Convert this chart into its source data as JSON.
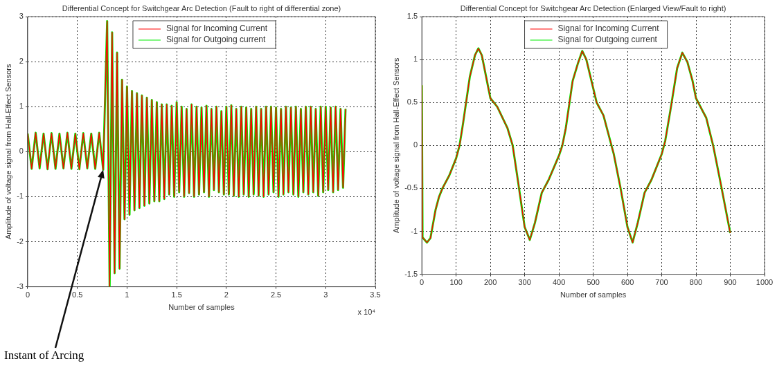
{
  "chart_data": [
    {
      "type": "line",
      "title": "Differential Concept for Switchgear Arc Detection (Fault to right of differential zone)",
      "xlabel": "Number of samples",
      "ylabel": "Amplitude of voltage signal from Hall-Effect Sensors",
      "xlim": [
        0,
        3.5
      ],
      "xticks": [
        0,
        0.5,
        1,
        1.5,
        2,
        2.5,
        3,
        3.5
      ],
      "ylim": [
        -3,
        3
      ],
      "yticks": [
        -3,
        -2,
        -1,
        0,
        1,
        2,
        3
      ],
      "grid": true,
      "legend": "top",
      "marker": "none",
      "line_style": "solid",
      "annotations": [
        "x 10⁴",
        "Instant of Arcing"
      ],
      "x": [
        0,
        0.04,
        0.08,
        0.12,
        0.16,
        0.2,
        0.24,
        0.28,
        0.32,
        0.36,
        0.4,
        0.44,
        0.48,
        0.52,
        0.56,
        0.6,
        0.64,
        0.68,
        0.72,
        0.76,
        0.8,
        0.825,
        0.85,
        0.875,
        0.9,
        0.925,
        0.95,
        0.975,
        1,
        1.025,
        1.05,
        1.075,
        1.1,
        1.125,
        1.15,
        1.175,
        1.2,
        1.225,
        1.25,
        1.275,
        1.3,
        1.325,
        1.35,
        1.375,
        1.4,
        1.425,
        1.45,
        1.475,
        1.5,
        1.525,
        1.55,
        1.575,
        1.6,
        1.625,
        1.65,
        1.675,
        1.7,
        1.725,
        1.75,
        1.775,
        1.8,
        1.825,
        1.85,
        1.875,
        1.9,
        1.925,
        1.95,
        1.975,
        2,
        2.025,
        2.05,
        2.075,
        2.1,
        2.125,
        2.15,
        2.175,
        2.2,
        2.225,
        2.25,
        2.275,
        2.3,
        2.325,
        2.35,
        2.375,
        2.4,
        2.425,
        2.45,
        2.475,
        2.5,
        2.525,
        2.55,
        2.575,
        2.6,
        2.625,
        2.65,
        2.675,
        2.7,
        2.725,
        2.75,
        2.775,
        2.8,
        2.825,
        2.85,
        2.875,
        2.9,
        2.925,
        2.95,
        2.975,
        3,
        3.025,
        3.05,
        3.075,
        3.1,
        3.125,
        3.15,
        3.175,
        3.2
      ],
      "series": [
        {
          "name": "Signal for Incoming Current",
          "color": "#ff0000",
          "values": [
            0.4,
            -0.38,
            0.42,
            -0.37,
            0.4,
            -0.39,
            0.41,
            -0.38,
            0.4,
            -0.37,
            0.42,
            -0.38,
            0.4,
            -0.39,
            0.41,
            -0.37,
            0.4,
            -0.38,
            0.42,
            -0.4,
            2.9,
            -3.0,
            2.65,
            -2.7,
            2.2,
            -2.6,
            1.6,
            -1.5,
            1.45,
            -1.4,
            1.35,
            -1.3,
            1.3,
            -1.25,
            1.25,
            -1.2,
            1.2,
            -1.15,
            1.15,
            -1.1,
            1.1,
            -1.1,
            1.05,
            -1.05,
            1.05,
            -0.95,
            1.02,
            -1.0,
            1.1,
            -0.9,
            1.0,
            -1.0,
            0.95,
            -0.92,
            1.05,
            -1.0,
            1.0,
            -0.95,
            0.98,
            -0.9,
            1.02,
            -1.0,
            0.95,
            -0.85,
            1.0,
            -0.9,
            0.9,
            -0.95,
            1.0,
            -0.95,
            1.03,
            -0.98,
            0.95,
            -1.0,
            1.0,
            -0.95,
            0.98,
            -1.0,
            0.95,
            -0.95,
            1.0,
            -0.98,
            0.95,
            -1.0,
            1.0,
            -0.95,
            1.0,
            -0.9,
            0.98,
            -1.0,
            0.95,
            -0.95,
            1.0,
            -0.9,
            0.98,
            -0.95,
            1.0,
            -1.0,
            0.95,
            -0.9,
            1.0,
            -0.95,
            1.0,
            -0.9,
            0.95,
            -0.98,
            1.0,
            -0.9,
            1.0,
            -0.85,
            0.98,
            -0.9,
            1.0,
            -0.85,
            0.95,
            -0.8,
            0.95
          ]
        },
        {
          "name": "Signal for Outgoing current",
          "color": "#00ee00",
          "values": [
            0.4,
            -0.38,
            0.42,
            -0.37,
            0.4,
            -0.39,
            0.41,
            -0.38,
            0.4,
            -0.37,
            0.42,
            -0.38,
            0.4,
            -0.39,
            0.41,
            -0.37,
            0.4,
            -0.38,
            0.42,
            -0.4,
            2.9,
            -3.0,
            2.65,
            -2.7,
            2.2,
            -2.6,
            1.6,
            -1.5,
            1.45,
            -1.4,
            1.35,
            -1.3,
            1.3,
            -1.25,
            1.25,
            -1.2,
            1.2,
            -1.15,
            1.15,
            -1.1,
            1.1,
            -1.1,
            1.05,
            -1.05,
            1.05,
            -0.95,
            1.02,
            -1.0,
            1.1,
            -0.9,
            1.0,
            -1.0,
            0.95,
            -0.92,
            1.05,
            -1.0,
            1.0,
            -0.95,
            0.98,
            -0.9,
            1.02,
            -1.0,
            0.95,
            -0.85,
            1.0,
            -0.9,
            0.9,
            -0.95,
            1.0,
            -0.95,
            1.03,
            -0.98,
            0.95,
            -1.0,
            1.0,
            -0.95,
            0.98,
            -1.0,
            0.95,
            -0.95,
            1.0,
            -0.98,
            0.95,
            -1.0,
            1.0,
            -0.95,
            1.0,
            -0.9,
            0.98,
            -1.0,
            0.95,
            -0.95,
            1.0,
            -0.9,
            0.98,
            -0.95,
            1.0,
            -1.0,
            0.95,
            -0.9,
            1.0,
            -0.95,
            1.0,
            -0.9,
            0.95,
            -0.98,
            1.0,
            -0.9,
            1.0,
            -0.85,
            0.98,
            -0.9,
            1.0,
            -0.85,
            0.95,
            -0.8,
            0.95
          ]
        }
      ]
    },
    {
      "type": "line",
      "title": "Differential Concept for Switchgear Arc Detection (Enlarged View/Fault to right)",
      "xlabel": "Number of samples",
      "ylabel": "Amplitude of voltage signal from Hall-Effect Sensors",
      "xlim": [
        0,
        1000
      ],
      "xticks": [
        0,
        100,
        200,
        300,
        400,
        500,
        600,
        700,
        800,
        900,
        1000
      ],
      "ylim": [
        -1.5,
        1.5
      ],
      "yticks": [
        -1.5,
        -1,
        -0.5,
        0,
        0.5,
        1,
        1.5
      ],
      "grid": true,
      "legend": "top",
      "marker": "none",
      "line_style": "solid",
      "x": [
        0,
        2,
        15,
        25,
        40,
        50,
        60,
        80,
        100,
        110,
        120,
        140,
        155,
        165,
        175,
        190,
        200,
        220,
        250,
        265,
        280,
        300,
        315,
        330,
        350,
        370,
        400,
        410,
        420,
        440,
        455,
        468,
        480,
        495,
        510,
        530,
        550,
        560,
        580,
        600,
        615,
        630,
        650,
        670,
        700,
        710,
        725,
        745,
        760,
        775,
        790,
        800,
        830,
        850,
        870,
        900
      ],
      "series": [
        {
          "name": "Signal for Incoming Current",
          "color": "#ff0000",
          "values": [
            0.7,
            -1.07,
            -1.13,
            -1.08,
            -0.75,
            -0.6,
            -0.5,
            -0.35,
            -0.15,
            0,
            0.25,
            0.8,
            1.05,
            1.13,
            1.05,
            0.75,
            0.55,
            0.45,
            0.2,
            0,
            -0.4,
            -0.95,
            -1.1,
            -0.9,
            -0.55,
            -0.4,
            -0.12,
            0,
            0.2,
            0.75,
            0.95,
            1.1,
            1.0,
            0.75,
            0.5,
            0.35,
            0.05,
            -0.1,
            -0.5,
            -0.95,
            -1.13,
            -0.9,
            -0.55,
            -0.4,
            -0.1,
            0.05,
            0.4,
            0.9,
            1.08,
            0.97,
            0.75,
            0.55,
            0.32,
            0,
            -0.4,
            -1.02
          ]
        },
        {
          "name": "Signal for Outgoing current",
          "color": "#00ee00",
          "values": [
            0.7,
            -1.07,
            -1.13,
            -1.08,
            -0.75,
            -0.6,
            -0.5,
            -0.35,
            -0.15,
            0,
            0.25,
            0.8,
            1.05,
            1.13,
            1.05,
            0.75,
            0.55,
            0.45,
            0.2,
            0,
            -0.4,
            -0.95,
            -1.1,
            -0.9,
            -0.55,
            -0.4,
            -0.12,
            0,
            0.2,
            0.75,
            0.95,
            1.1,
            1.0,
            0.75,
            0.5,
            0.35,
            0.05,
            -0.1,
            -0.5,
            -0.95,
            -1.13,
            -0.9,
            -0.55,
            -0.4,
            -0.1,
            0.05,
            0.4,
            0.9,
            1.08,
            0.97,
            0.75,
            0.55,
            0.32,
            0,
            -0.4,
            -1.02
          ]
        }
      ]
    }
  ]
}
